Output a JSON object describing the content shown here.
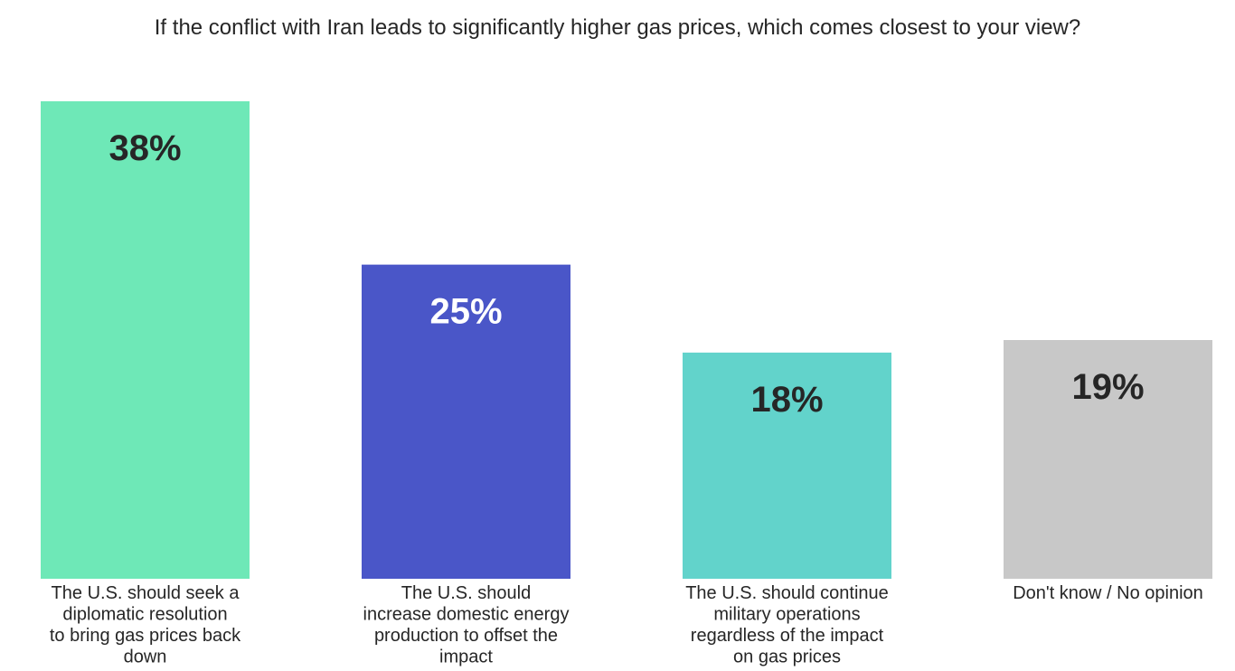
{
  "chart_data": {
    "type": "bar",
    "title": "If the conflict with Iran leads to significantly higher gas prices, which comes closest to your view?",
    "categories": [
      [
        "The U.S. should seek a",
        "diplomatic resolution",
        "to bring gas prices back",
        "down"
      ],
      [
        "The U.S. should",
        "increase domestic energy",
        "production to offset the",
        "impact"
      ],
      [
        "The U.S. should continue",
        "military operations",
        "regardless of the impact",
        "on gas prices"
      ],
      [
        "Don't know / No opinion"
      ]
    ],
    "values": [
      38,
      25,
      18,
      19
    ],
    "value_labels": [
      "38%",
      "25%",
      "18%",
      "19%"
    ],
    "colors": [
      "#6ee8b7",
      "#4a56c8",
      "#62d3cb",
      "#c8c8c8"
    ],
    "label_colors": [
      "#262626",
      "#ffffff",
      "#262626",
      "#262626"
    ],
    "grid": false,
    "legend": "none"
  }
}
